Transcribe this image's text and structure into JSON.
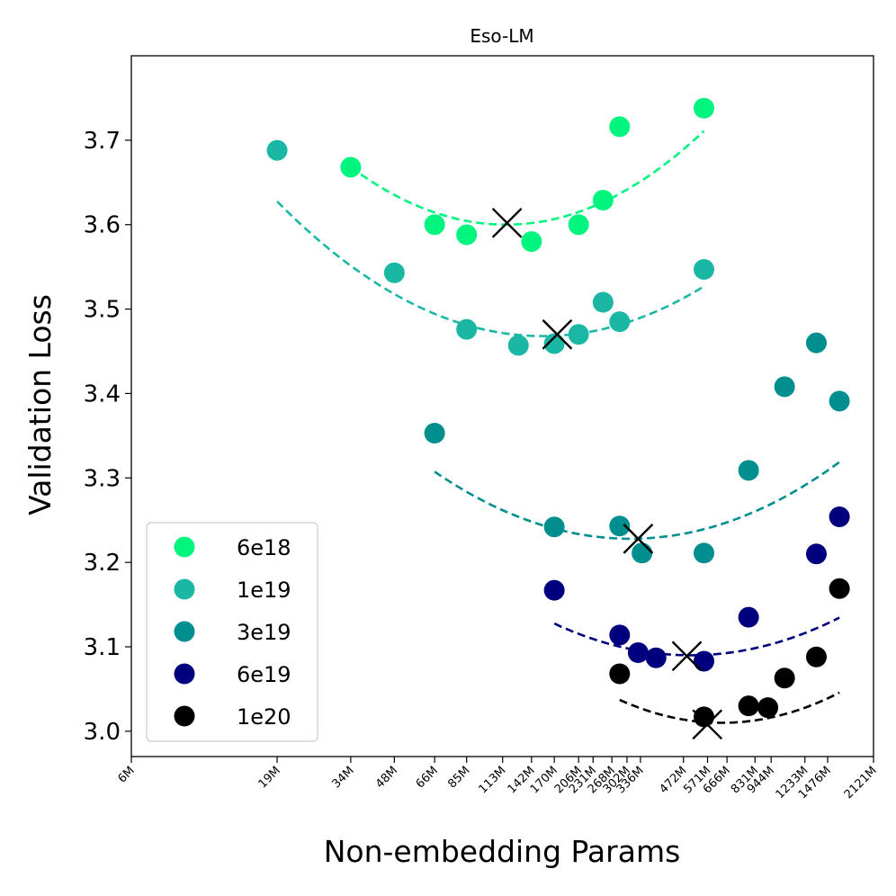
{
  "chart_data": {
    "type": "scatter",
    "title": "Eso-LM",
    "xlabel": "Non-embedding Params",
    "ylabel": "Validation Loss",
    "xscale": "log",
    "xlim_params_M": [
      6,
      2121
    ],
    "ylim": [
      2.97,
      3.8
    ],
    "y_ticks": [
      3.0,
      3.1,
      3.2,
      3.3,
      3.4,
      3.5,
      3.6,
      3.7
    ],
    "x_ticks": [
      {
        "label": "6M",
        "value": 6
      },
      {
        "label": "19M",
        "value": 19
      },
      {
        "label": "34M",
        "value": 34
      },
      {
        "label": "48M",
        "value": 48
      },
      {
        "label": "66M",
        "value": 66
      },
      {
        "label": "85M",
        "value": 85
      },
      {
        "label": "113M",
        "value": 113
      },
      {
        "label": "142M",
        "value": 142
      },
      {
        "label": "170M",
        "value": 170
      },
      {
        "label": "206M",
        "value": 206
      },
      {
        "label": "231M",
        "value": 231
      },
      {
        "label": "268M",
        "value": 268
      },
      {
        "label": "302M",
        "value": 302
      },
      {
        "label": "336M",
        "value": 336
      },
      {
        "label": "472M",
        "value": 472
      },
      {
        "label": "571M",
        "value": 571
      },
      {
        "label": "666M",
        "value": 666
      },
      {
        "label": "831M",
        "value": 831
      },
      {
        "label": "944M",
        "value": 944
      },
      {
        "label": "1233M",
        "value": 1233
      },
      {
        "label": "1476M",
        "value": 1476
      },
      {
        "label": "2121M",
        "value": 2121
      }
    ],
    "legend_position": "lower-left",
    "series": [
      {
        "name": "6e18",
        "color": "#00f57f",
        "points": [
          [
            34,
            3.668
          ],
          [
            66,
            3.6
          ],
          [
            85,
            3.588
          ],
          [
            142,
            3.58
          ],
          [
            206,
            3.6
          ],
          [
            250,
            3.629
          ],
          [
            285,
            3.716
          ],
          [
            555,
            3.738
          ]
        ],
        "fit_quadratic_log": {
          "x_range": [
            34,
            555
          ],
          "a": 0.24,
          "x_opt": 116,
          "y_min": 3.6
        },
        "optimum_marker": [
          117,
          3.602
        ]
      },
      {
        "name": "1e19",
        "color": "#1ab8a4",
        "points": [
          [
            19,
            3.688
          ],
          [
            48,
            3.543
          ],
          [
            85,
            3.476
          ],
          [
            128,
            3.457
          ],
          [
            170,
            3.459
          ],
          [
            206,
            3.47
          ],
          [
            250,
            3.508
          ],
          [
            285,
            3.485
          ],
          [
            555,
            3.547
          ]
        ],
        "fit_quadratic_log": {
          "x_range": [
            19,
            555
          ],
          "a": 0.192,
          "x_opt": 155,
          "y_min": 3.468
        },
        "optimum_marker": [
          174,
          3.47
        ]
      },
      {
        "name": "3e19",
        "color": "#008e8e",
        "points": [
          [
            66,
            3.353
          ],
          [
            170,
            3.242
          ],
          [
            285,
            3.243
          ],
          [
            340,
            3.211
          ],
          [
            555,
            3.211
          ],
          [
            790,
            3.309
          ],
          [
            1050,
            3.408
          ],
          [
            1350,
            3.46
          ],
          [
            1620,
            3.391
          ]
        ],
        "fit_quadratic_log": {
          "x_range": [
            66,
            1620
          ],
          "a": 0.176,
          "x_opt": 310,
          "y_min": 3.228
        },
        "optimum_marker": [
          330,
          3.228
        ]
      },
      {
        "name": "6e19",
        "color": "#00007e",
        "points": [
          [
            170,
            3.167
          ],
          [
            285,
            3.114
          ],
          [
            330,
            3.093
          ],
          [
            380,
            3.087
          ],
          [
            555,
            3.083
          ],
          [
            790,
            3.135
          ],
          [
            1350,
            3.21
          ],
          [
            1620,
            3.254
          ]
        ],
        "fit_quadratic_log": {
          "x_range": [
            170,
            1620
          ],
          "a": 0.171,
          "x_opt": 500,
          "y_min": 3.09
        },
        "optimum_marker": [
          485,
          3.089
        ]
      },
      {
        "name": "1e20",
        "color": "#000000",
        "points": [
          [
            285,
            3.068
          ],
          [
            555,
            3.017
          ],
          [
            790,
            3.03
          ],
          [
            920,
            3.028
          ],
          [
            1050,
            3.063
          ],
          [
            1350,
            3.088
          ],
          [
            1620,
            3.169
          ]
        ],
        "fit_quadratic_log": {
          "x_range": [
            285,
            1620
          ],
          "a": 0.22,
          "x_opt": 640,
          "y_min": 3.01
        },
        "optimum_marker": [
          570,
          3.008
        ]
      }
    ]
  }
}
